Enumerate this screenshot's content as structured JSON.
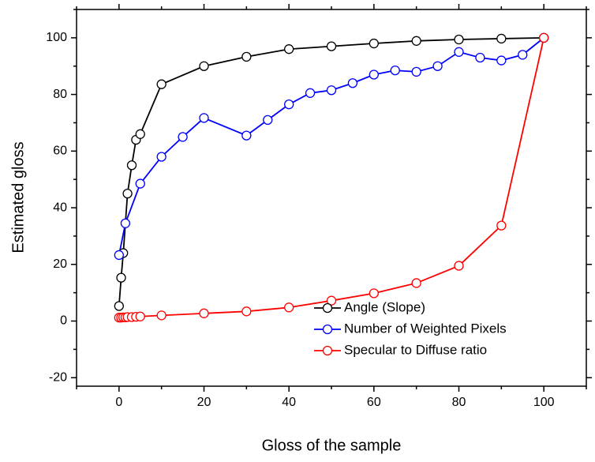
{
  "chart_data": {
    "type": "line",
    "xlabel": "Gloss of the sample",
    "ylabel": "Estimated gloss",
    "xlim": [
      -10,
      110
    ],
    "ylim": [
      -23,
      110
    ],
    "xticks": [
      0,
      20,
      40,
      60,
      80,
      100
    ],
    "yticks": [
      -20,
      0,
      20,
      40,
      60,
      80,
      100
    ],
    "legend": "lower right",
    "series": [
      {
        "name": "Angle (Slope)",
        "color": "#000000",
        "x": [
          0,
          0.5,
          1,
          2,
          3,
          4,
          5,
          10,
          20,
          30,
          40,
          50,
          60,
          70,
          80,
          90,
          100
        ],
        "values": [
          5.3,
          15.3,
          24,
          45,
          55,
          64,
          66,
          83.6,
          90,
          93.3,
          96,
          97,
          98,
          98.9,
          99.4,
          99.7,
          100
        ]
      },
      {
        "name": "Number of Weighted Pixels",
        "color": "#0000ff",
        "x": [
          0,
          1.5,
          5,
          10,
          15,
          20,
          30,
          35,
          40,
          45,
          50,
          55,
          60,
          65,
          70,
          75,
          80,
          85,
          90,
          95,
          100
        ],
        "values": [
          23.3,
          34.5,
          48.5,
          58,
          65,
          71.7,
          65.5,
          71,
          76.5,
          80.5,
          81.5,
          84,
          87,
          88.5,
          88,
          90,
          95,
          93,
          92,
          94,
          100
        ]
      },
      {
        "name": "Specular to Diffuse ratio",
        "color": "#ff0000",
        "x": [
          0,
          0.5,
          1,
          1.5,
          2,
          3,
          4,
          5,
          10,
          20,
          30,
          40,
          50,
          60,
          70,
          80,
          90,
          100
        ],
        "values": [
          1.2,
          1.2,
          1.3,
          1.3,
          1.4,
          1.4,
          1.5,
          1.6,
          2,
          2.7,
          3.4,
          4.8,
          7.2,
          9.8,
          13.4,
          19.5,
          33.7,
          100
        ]
      }
    ]
  }
}
